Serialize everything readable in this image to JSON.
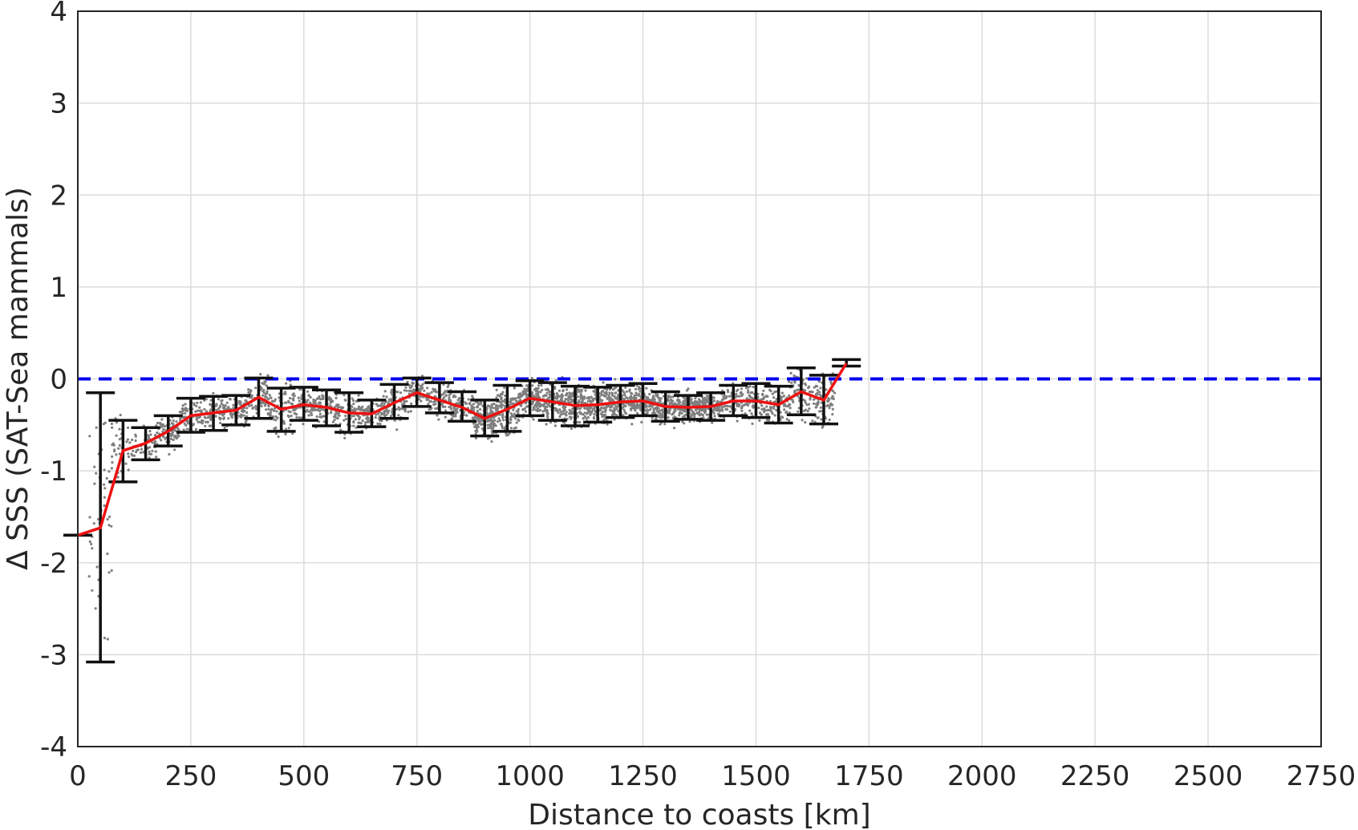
{
  "chart_data": {
    "type": "line",
    "xlabel": "Distance to coasts [km]",
    "ylabel": "Δ SSS (SAT-Sea mammals)",
    "xlim": [
      0,
      2750
    ],
    "ylim": [
      -4,
      4
    ],
    "xticks": [
      0,
      250,
      500,
      750,
      1000,
      1250,
      1500,
      1750,
      2000,
      2250,
      2500,
      2750
    ],
    "yticks": [
      -4,
      -3,
      -2,
      -1,
      0,
      1,
      2,
      3,
      4
    ],
    "grid": true,
    "reference_line": {
      "y": 0,
      "style": "dashed",
      "color": "#0000ee"
    },
    "mean_line_color": "#ee1111",
    "errorbar_color": "#111111",
    "scatter_color": "#7f7f7f",
    "x": [
      0,
      50,
      100,
      150,
      200,
      250,
      300,
      350,
      400,
      450,
      500,
      550,
      600,
      650,
      700,
      750,
      800,
      850,
      900,
      950,
      1000,
      1050,
      1100,
      1150,
      1200,
      1250,
      1300,
      1350,
      1400,
      1450,
      1500,
      1550,
      1600,
      1650,
      1700
    ],
    "mean": [
      -1.7,
      -1.62,
      -0.78,
      -0.7,
      -0.57,
      -0.4,
      -0.37,
      -0.34,
      -0.2,
      -0.33,
      -0.28,
      -0.31,
      -0.37,
      -0.38,
      -0.26,
      -0.15,
      -0.23,
      -0.31,
      -0.43,
      -0.33,
      -0.21,
      -0.25,
      -0.29,
      -0.28,
      -0.25,
      -0.24,
      -0.3,
      -0.31,
      -0.3,
      -0.24,
      -0.24,
      -0.28,
      -0.14,
      -0.23,
      0.17
    ],
    "err_low": [
      -1.7,
      -3.08,
      -1.12,
      -0.88,
      -0.73,
      -0.58,
      -0.56,
      -0.5,
      -0.43,
      -0.57,
      -0.45,
      -0.51,
      -0.58,
      -0.52,
      -0.43,
      -0.3,
      -0.37,
      -0.46,
      -0.62,
      -0.57,
      -0.4,
      -0.45,
      -0.51,
      -0.47,
      -0.42,
      -0.4,
      -0.46,
      -0.44,
      -0.45,
      -0.4,
      -0.42,
      -0.48,
      -0.39,
      -0.49,
      0.14
    ],
    "err_high": [
      -1.7,
      -0.15,
      -0.45,
      -0.53,
      -0.4,
      -0.21,
      -0.19,
      -0.18,
      0.01,
      -0.1,
      -0.09,
      -0.12,
      -0.15,
      -0.23,
      -0.06,
      0.01,
      -0.04,
      -0.14,
      -0.23,
      -0.07,
      -0.02,
      -0.04,
      -0.08,
      -0.09,
      -0.07,
      -0.05,
      -0.14,
      -0.18,
      -0.15,
      -0.07,
      -0.05,
      -0.08,
      0.12,
      0.04,
      0.21
    ]
  }
}
